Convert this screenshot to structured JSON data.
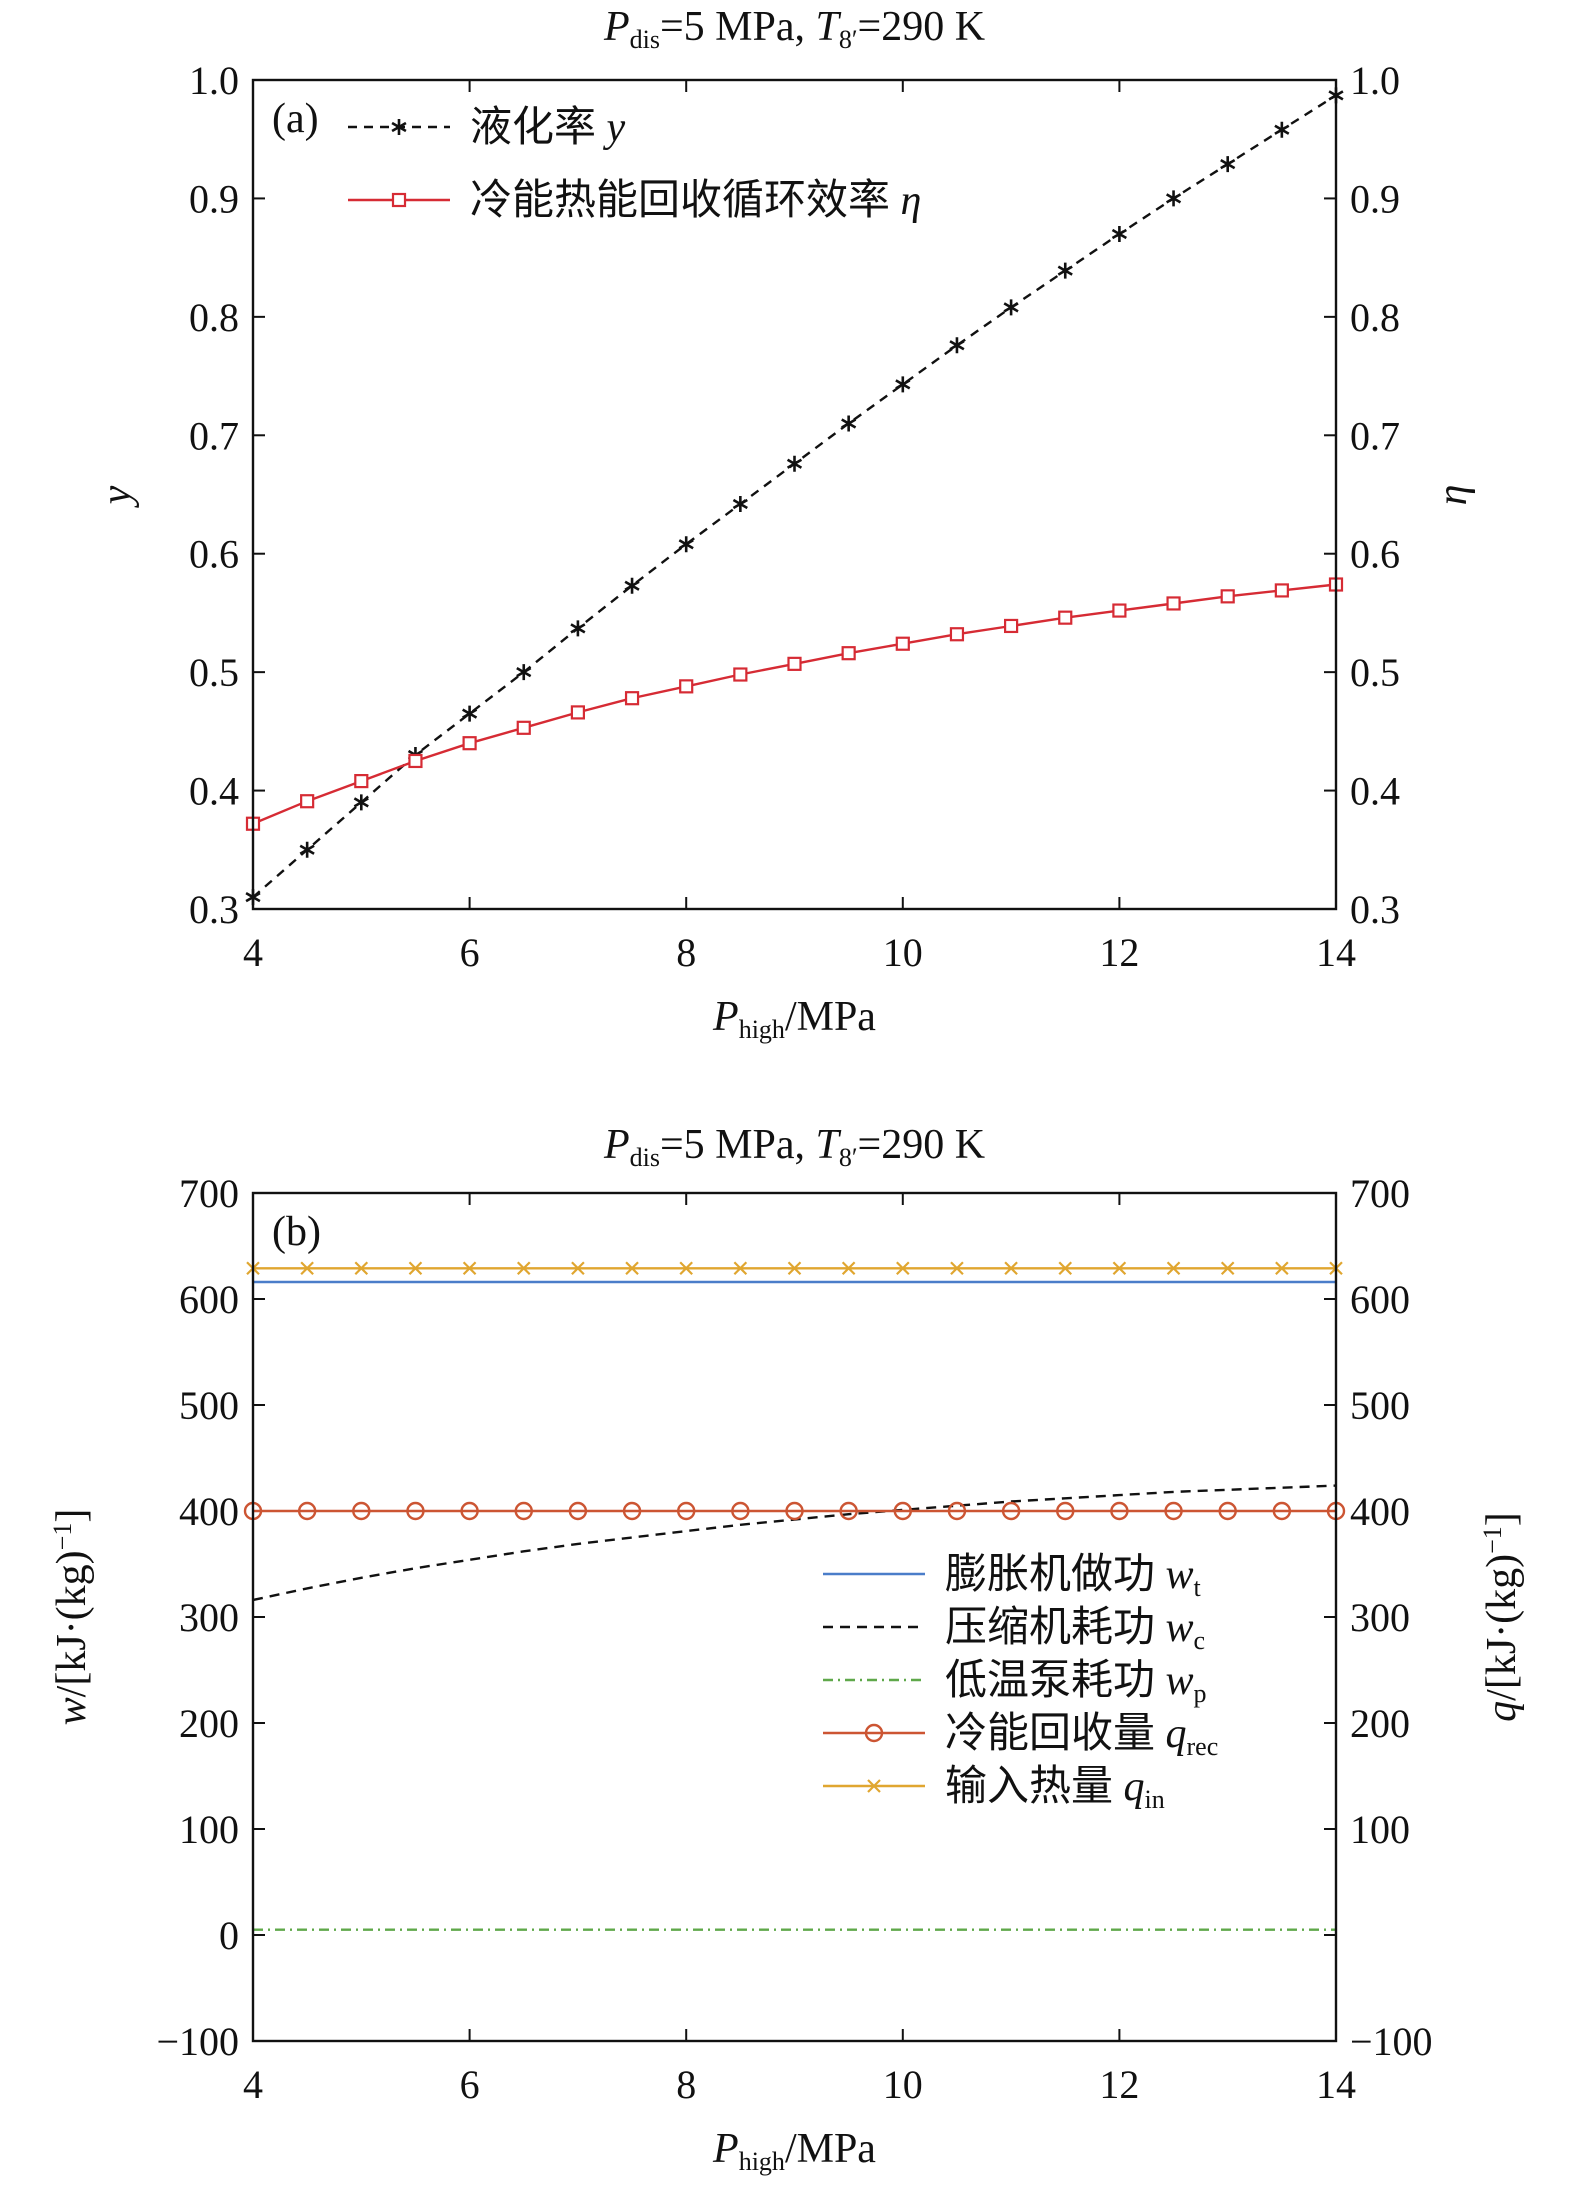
{
  "chart_data": [
    {
      "id": "a",
      "type": "line",
      "panel_label": "(a)",
      "title": {
        "p": "P",
        "p_sub": "dis",
        "mid": "=5 MPa, ",
        "t": "T",
        "t_sub": "8′",
        "end": "=290 K"
      },
      "xlabel": {
        "main": "P",
        "sub": "high",
        "unit": "/MPa"
      },
      "ylabel_left": "y",
      "ylabel_right": "η",
      "xlim": [
        4,
        14
      ],
      "ylim": [
        0.3,
        1.0
      ],
      "xticks": [
        "4",
        "6",
        "8",
        "10",
        "12",
        "14"
      ],
      "yticks_left": [
        "0.3",
        "0.4",
        "0.5",
        "0.6",
        "0.7",
        "0.8",
        "0.9",
        "1.0"
      ],
      "yticks_right": [
        "0.3",
        "0.4",
        "0.5",
        "0.6",
        "0.7",
        "0.8",
        "0.9",
        "1.0"
      ],
      "legend_position": "top-left",
      "x": [
        4.0,
        4.5,
        5.0,
        5.5,
        6.0,
        6.5,
        7.0,
        7.5,
        8.0,
        8.5,
        9.0,
        9.5,
        10.0,
        10.5,
        11.0,
        11.5,
        12.0,
        12.5,
        13.0,
        13.5,
        14.0
      ],
      "series": [
        {
          "legend": "液化率",
          "legend_var": "y",
          "color": "#111111",
          "dash": "9,7",
          "marker": "asterisk",
          "values": [
            0.31,
            0.35,
            0.39,
            0.43,
            0.465,
            0.5,
            0.537,
            0.573,
            0.608,
            0.642,
            0.676,
            0.71,
            0.743,
            0.776,
            0.808,
            0.839,
            0.87,
            0.9,
            0.929,
            0.958,
            0.987
          ]
        },
        {
          "legend": "冷能热能回收循环效率",
          "legend_var": "η",
          "color": "#d62b34",
          "dash": "",
          "marker": "square",
          "values": [
            0.372,
            0.391,
            0.408,
            0.425,
            0.44,
            0.453,
            0.466,
            0.478,
            0.488,
            0.498,
            0.507,
            0.516,
            0.524,
            0.532,
            0.539,
            0.546,
            0.552,
            0.558,
            0.564,
            0.569,
            0.574
          ]
        }
      ]
    },
    {
      "id": "b",
      "type": "line",
      "panel_label": "(b)",
      "title": {
        "p": "P",
        "p_sub": "dis",
        "mid": "=5 MPa, ",
        "t": "T",
        "t_sub": "8′",
        "end": "=290 K"
      },
      "xlabel": {
        "main": "P",
        "sub": "high",
        "unit": "/MPa"
      },
      "ylabel_left": {
        "var": "w",
        "unit": "/[kJ·(kg)",
        "exp": "−1",
        "close": "]"
      },
      "ylabel_right": {
        "var": "q",
        "unit": "/[kJ·(kg)",
        "exp": "−1",
        "close": "]"
      },
      "xlim": [
        4,
        14
      ],
      "ylim": [
        -100,
        700
      ],
      "xticks": [
        "4",
        "6",
        "8",
        "10",
        "12",
        "14"
      ],
      "yticks_left": [
        "−100",
        "0",
        "100",
        "200",
        "300",
        "400",
        "500",
        "600",
        "700"
      ],
      "yticks_right": [
        "",
        "−100",
        "100",
        "200",
        "300",
        "400",
        "500",
        "600",
        "700"
      ],
      "yticks_right_values": [
        0,
        -100,
        100,
        200,
        300,
        400,
        500,
        600,
        700
      ],
      "legend_position": "right-middle",
      "x": [
        4.0,
        4.5,
        5.0,
        5.5,
        6.0,
        6.5,
        7.0,
        7.5,
        8.0,
        8.5,
        9.0,
        9.5,
        10.0,
        10.5,
        11.0,
        11.5,
        12.0,
        12.5,
        13.0,
        13.5,
        14.0
      ],
      "series": [
        {
          "legend": "膨胀机做功",
          "legend_var": "w",
          "legend_sub": "t",
          "color": "#4a7dc9",
          "dash": "",
          "marker": "none",
          "values": [
            616,
            616,
            616,
            616,
            616,
            616,
            616,
            616,
            616,
            616,
            616,
            616,
            616,
            616,
            616,
            616,
            616,
            616,
            616,
            616,
            616
          ]
        },
        {
          "legend": "压缩机耗功",
          "legend_var": "w",
          "legend_sub": "c",
          "color": "#111111",
          "dash": "10,7",
          "marker": "none",
          "values": [
            316,
            327,
            337,
            346,
            354,
            362,
            369,
            375,
            381,
            387,
            392,
            397,
            401,
            405,
            409,
            412,
            415,
            418,
            420,
            422,
            424
          ]
        },
        {
          "legend": "低温泵耗功",
          "legend_var": "w",
          "legend_sub": "p",
          "color": "#5fa84a",
          "dash": "10,5,2,5",
          "marker": "none",
          "values": [
            5,
            5,
            5,
            5,
            5,
            5,
            5,
            5,
            5,
            5,
            5,
            5,
            5,
            5,
            5,
            5,
            5,
            5,
            5,
            5,
            5
          ]
        },
        {
          "legend": "冷能回收量",
          "legend_var": "q",
          "legend_sub": "rec",
          "color": "#cc5533",
          "dash": "",
          "marker": "circle",
          "values": [
            400,
            400,
            400,
            400,
            400,
            400,
            400,
            400,
            400,
            400,
            400,
            400,
            400,
            400,
            400,
            400,
            400,
            400,
            400,
            400,
            400
          ]
        },
        {
          "legend": "输入热量",
          "legend_var": "q",
          "legend_sub": "in",
          "color": "#e0a630",
          "dash": "",
          "marker": "x",
          "values": [
            629,
            629,
            629,
            629,
            629,
            629,
            629,
            629,
            629,
            629,
            629,
            629,
            629,
            629,
            629,
            629,
            629,
            629,
            629,
            629,
            629
          ]
        }
      ]
    }
  ]
}
